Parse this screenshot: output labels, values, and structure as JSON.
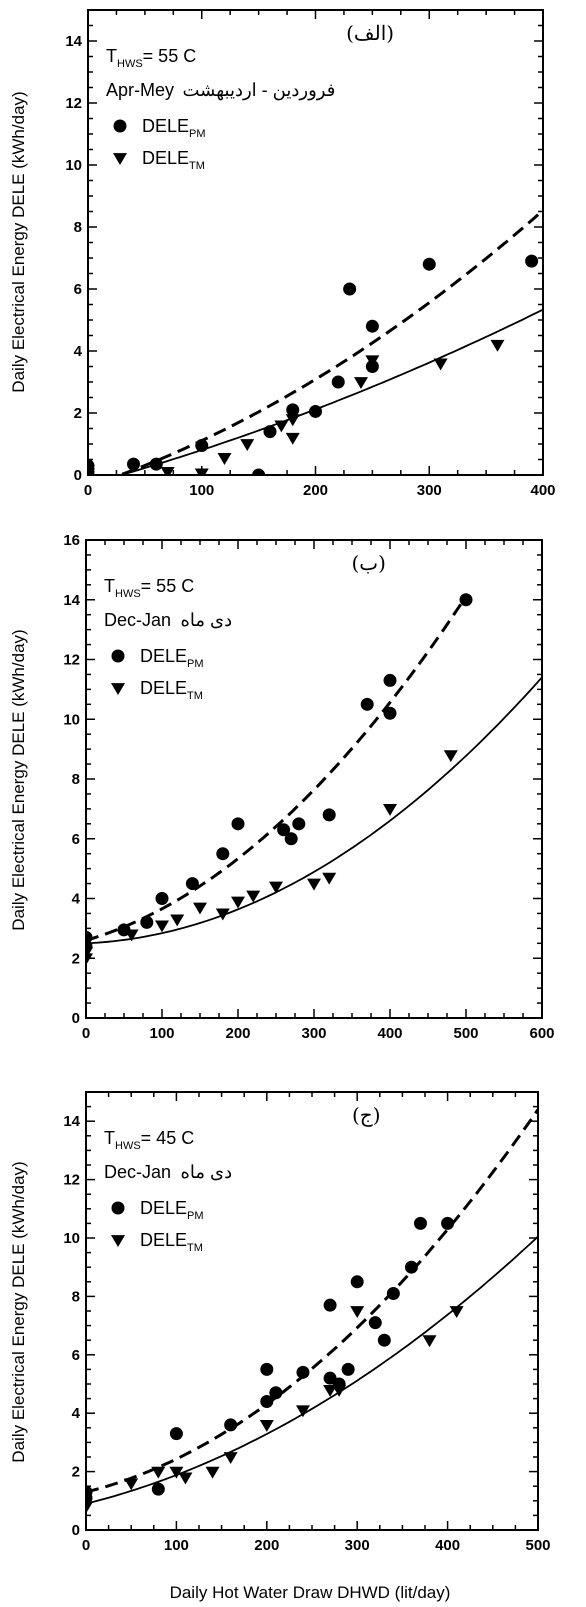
{
  "figure": {
    "x_axis_title": "Daily Hot Water Draw DHWD (lit/day)"
  },
  "chart_data": [
    {
      "type": "scatter",
      "panel_label": "(الف)",
      "ylabel": "Daily Electrical Energy DELE (kWh/day)",
      "xlim": [
        0,
        400
      ],
      "ylim": [
        0,
        15
      ],
      "x_ticks": [
        0,
        100,
        200,
        300,
        400
      ],
      "y_ticks": [
        0,
        2,
        4,
        6,
        8,
        10,
        12,
        14
      ],
      "temperature": {
        "prefix": "T",
        "sub": "HWS",
        "value": "= 55 C"
      },
      "period": "Apr-Mey",
      "period_fa": "فروردین - اردیبهشت",
      "legend_position": "upper-left",
      "series": [
        {
          "name": "DELE",
          "sub": "PM",
          "marker": "circle",
          "points": [
            [
              0,
              0.3
            ],
            [
              0,
              0.1
            ],
            [
              40,
              0.35
            ],
            [
              60,
              0.35
            ],
            [
              100,
              0.95
            ],
            [
              150,
              0
            ],
            [
              160,
              1.4
            ],
            [
              180,
              2.1
            ],
            [
              200,
              2.05
            ],
            [
              220,
              3.0
            ],
            [
              230,
              6.0
            ],
            [
              250,
              4.8
            ],
            [
              250,
              3.5
            ],
            [
              300,
              6.8
            ],
            [
              390,
              6.9
            ]
          ]
        },
        {
          "name": "DELE",
          "sub": "TM",
          "marker": "triangle-down",
          "points": [
            [
              0,
              0.05
            ],
            [
              70,
              0.1
            ],
            [
              100,
              0.05
            ],
            [
              120,
              0.55
            ],
            [
              140,
              1.0
            ],
            [
              170,
              1.6
            ],
            [
              180,
              1.8
            ],
            [
              180,
              1.2
            ],
            [
              240,
              3.0
            ],
            [
              250,
              3.7
            ],
            [
              310,
              3.6
            ],
            [
              360,
              4.2
            ]
          ]
        }
      ],
      "fits": [
        {
          "style": "dashed",
          "x": [
            30,
            400
          ],
          "coef": [
            -0.37,
            0.0123,
            2.49e-05
          ]
        },
        {
          "style": "solid",
          "x": [
            30,
            400
          ],
          "coef": [
            -0.304,
            0.0101,
            1e-05
          ]
        }
      ]
    },
    {
      "type": "scatter",
      "panel_label": "(ب)",
      "ylabel": "Daily Electrical Energy DELE (kWh/day)",
      "xlim": [
        0,
        600
      ],
      "ylim": [
        0,
        16
      ],
      "x_ticks": [
        0,
        100,
        200,
        300,
        400,
        500,
        600
      ],
      "y_ticks": [
        0,
        2,
        4,
        6,
        8,
        10,
        12,
        14,
        16
      ],
      "temperature": {
        "prefix": "T",
        "sub": "HWS",
        "value": "= 55 C"
      },
      "period": "Dec-Jan",
      "period_fa": "دی ماه",
      "legend_position": "upper-left",
      "series": [
        {
          "name": "DELE",
          "sub": "PM",
          "marker": "circle",
          "points": [
            [
              0,
              2.7
            ],
            [
              0,
              2.4
            ],
            [
              50,
              2.95
            ],
            [
              80,
              3.2
            ],
            [
              100,
              4.0
            ],
            [
              140,
              4.5
            ],
            [
              180,
              5.5
            ],
            [
              200,
              6.5
            ],
            [
              260,
              6.3
            ],
            [
              270,
              6.0
            ],
            [
              280,
              6.5
            ],
            [
              320,
              6.8
            ],
            [
              370,
              10.5
            ],
            [
              400,
              11.3
            ],
            [
              400,
              10.2
            ],
            [
              500,
              14.0
            ]
          ]
        },
        {
          "name": "DELE",
          "sub": "TM",
          "marker": "triangle-down",
          "points": [
            [
              0,
              2.0
            ],
            [
              0,
              2.2
            ],
            [
              60,
              2.8
            ],
            [
              100,
              3.1
            ],
            [
              120,
              3.3
            ],
            [
              150,
              3.7
            ],
            [
              180,
              3.5
            ],
            [
              200,
              3.9
            ],
            [
              220,
              4.1
            ],
            [
              250,
              4.4
            ],
            [
              300,
              4.5
            ],
            [
              320,
              4.7
            ],
            [
              400,
              7.0
            ],
            [
              480,
              8.8
            ]
          ]
        }
      ],
      "fits": [
        {
          "style": "dashed",
          "x": [
            0,
            500
          ],
          "coef": [
            2.6,
            0.00745,
            3.116e-05
          ]
        },
        {
          "style": "solid",
          "x": [
            0,
            600
          ],
          "coef": [
            2.5,
            0.0011,
            2.29e-05
          ]
        }
      ]
    },
    {
      "type": "scatter",
      "panel_label": "(ج)",
      "ylabel": "Daily Electrical Energy DELE (kWh/day)",
      "xlabel": "Daily Hot Water Draw DHWD (lit/day)",
      "xlim": [
        0,
        500
      ],
      "ylim": [
        0,
        15
      ],
      "x_ticks": [
        0,
        100,
        200,
        300,
        400,
        500
      ],
      "y_ticks": [
        0,
        2,
        4,
        6,
        8,
        10,
        12,
        14
      ],
      "temperature": {
        "prefix": "T",
        "sub": "HWS",
        "value": "= 45 C"
      },
      "period": "Dec-Jan",
      "period_fa": "دی ماه",
      "legend_position": "upper-left",
      "series": [
        {
          "name": "DELE",
          "sub": "PM",
          "marker": "circle",
          "points": [
            [
              0,
              1.3
            ],
            [
              0,
              1.1
            ],
            [
              80,
              1.4
            ],
            [
              100,
              3.3
            ],
            [
              160,
              3.6
            ],
            [
              200,
              5.5
            ],
            [
              200,
              4.4
            ],
            [
              210,
              4.7
            ],
            [
              240,
              5.4
            ],
            [
              270,
              7.7
            ],
            [
              270,
              5.2
            ],
            [
              280,
              5.0
            ],
            [
              290,
              5.5
            ],
            [
              300,
              8.5
            ],
            [
              320,
              7.1
            ],
            [
              330,
              6.5
            ],
            [
              340,
              8.1
            ],
            [
              360,
              9.0
            ],
            [
              370,
              10.5
            ],
            [
              400,
              10.5
            ]
          ]
        },
        {
          "name": "DELE",
          "sub": "TM",
          "marker": "triangle-down",
          "points": [
            [
              0,
              0.8
            ],
            [
              50,
              1.6
            ],
            [
              80,
              2.0
            ],
            [
              100,
              2.0
            ],
            [
              110,
              1.8
            ],
            [
              140,
              2.0
            ],
            [
              160,
              2.5
            ],
            [
              200,
              3.6
            ],
            [
              240,
              4.1
            ],
            [
              270,
              4.8
            ],
            [
              280,
              4.8
            ],
            [
              300,
              7.5
            ],
            [
              380,
              6.5
            ],
            [
              410,
              7.5
            ]
          ]
        }
      ],
      "fits": [
        {
          "style": "dashed",
          "x": [
            0,
            500
          ],
          "coef": [
            1.3,
            0.0076,
            3.72e-05
          ]
        },
        {
          "style": "solid",
          "x": [
            0,
            500
          ],
          "coef": [
            0.9,
            0.0077,
            2.12e-05
          ]
        }
      ]
    }
  ]
}
